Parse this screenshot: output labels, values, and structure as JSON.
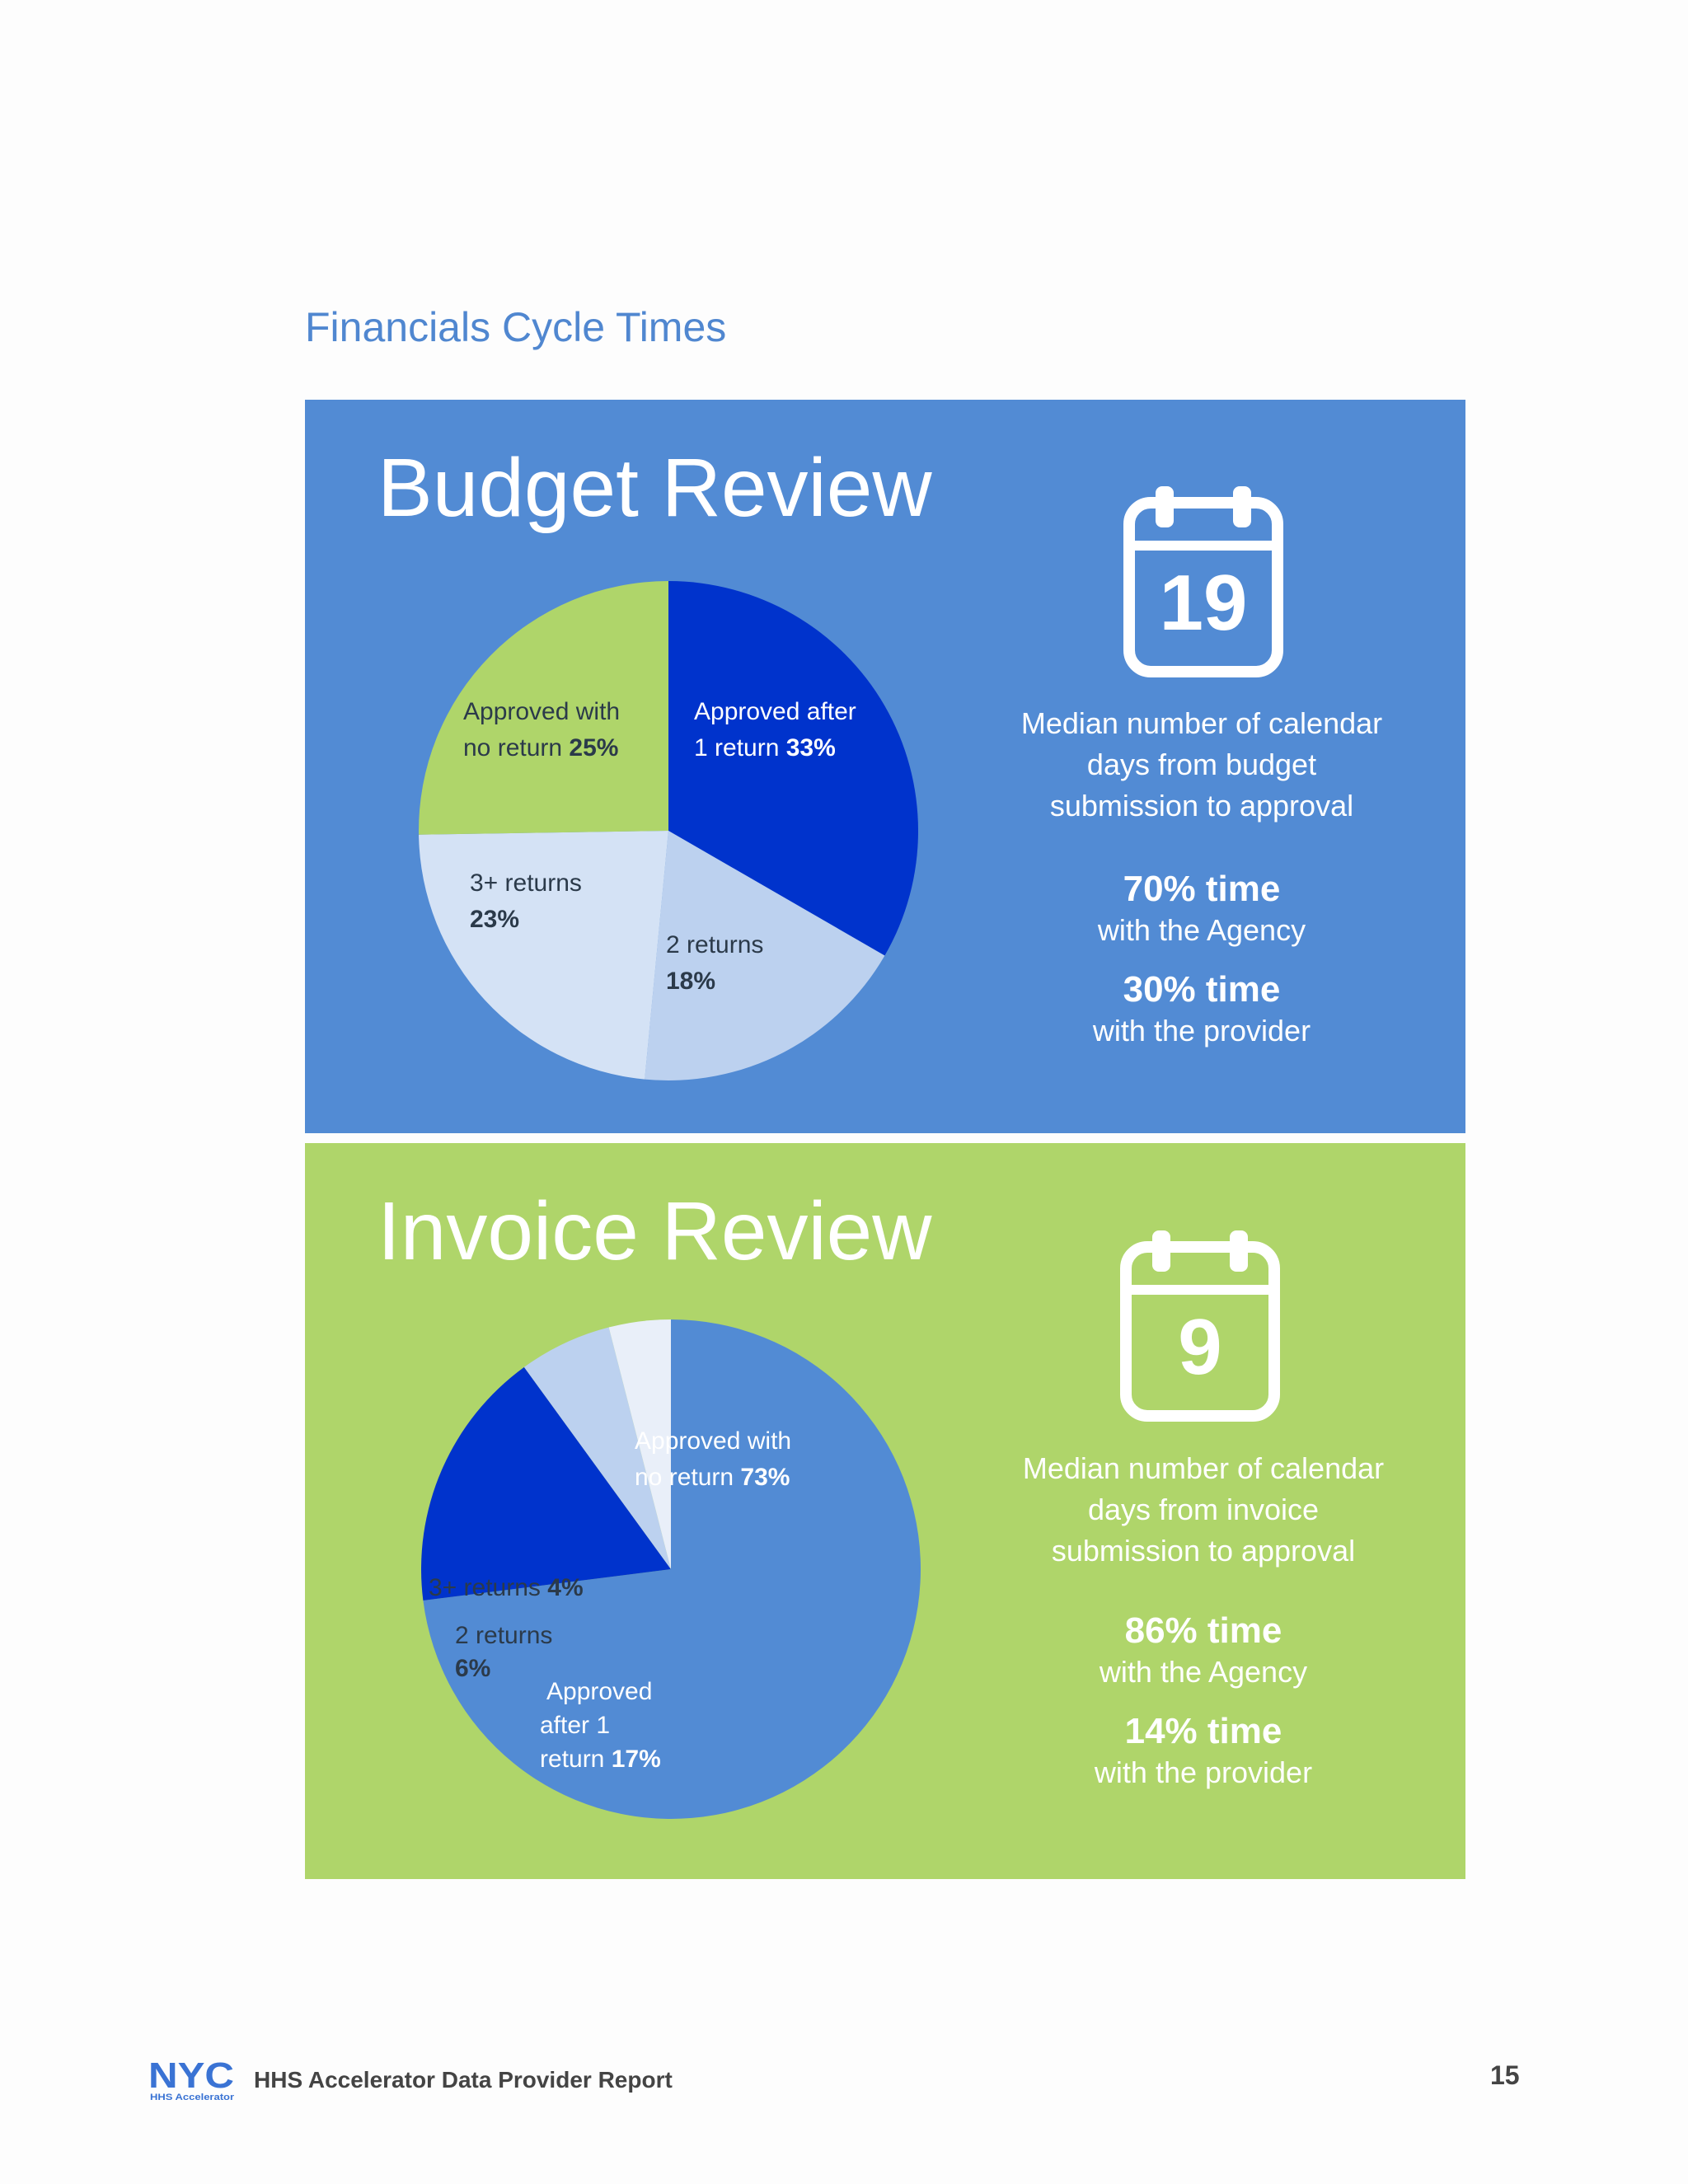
{
  "page_title": "Financials Cycle Times",
  "colors": {
    "blue_bg": "#528bd4",
    "green_bg": "#afd56a",
    "dark_blue": "#0033cc",
    "light_blue": "#bcd1ef",
    "pale_blue": "#d4e2f5",
    "paler_blue": "#e9eff9"
  },
  "budget": {
    "title": "Budget Review",
    "calendar_icon": "calendar-icon",
    "days": "19",
    "median_text": [
      "Median number of calendar",
      "days from budget",
      "submission to approval"
    ],
    "agency_pct": "70% time",
    "agency_label": "with the Agency",
    "provider_pct": "30% time",
    "provider_label": "with the provider"
  },
  "invoice": {
    "title": "Invoice Review",
    "calendar_icon": "calendar-icon",
    "days": "9",
    "median_text": [
      "Median number of calendar",
      "days from invoice",
      "submission to approval"
    ],
    "agency_pct": "86% time",
    "agency_label": "with the Agency",
    "provider_pct": "14% time",
    "provider_label": "with the provider"
  },
  "chart_data": [
    {
      "type": "pie",
      "slices": [
        {
          "category": "Approved after 1 return",
          "value": 33,
          "value_label": "33%",
          "color": "#0033cc",
          "label_lines": [
            "Approved after",
            "1 return"
          ]
        },
        {
          "category": "2 returns",
          "value": 18,
          "value_label": "18%",
          "color": "#bcd1ef",
          "label_lines": [
            "2 returns"
          ]
        },
        {
          "category": "3+ returns",
          "value": 23,
          "value_label": "23%",
          "color": "#d4e2f5",
          "label_lines": [
            "3+ returns"
          ]
        },
        {
          "category": "Approved with no return",
          "value": 25,
          "value_label": "25%",
          "color": "#afd56a",
          "label_lines": [
            "Approved with",
            "no return"
          ]
        }
      ]
    },
    {
      "type": "pie",
      "slices": [
        {
          "category": "Approved with no return",
          "value": 73,
          "value_label": "73%",
          "color": "#528bd4",
          "label_lines": [
            "Approved with",
            "no return"
          ]
        },
        {
          "category": "Approved after 1 return",
          "value": 17,
          "value_label": "17%",
          "color": "#0033cc",
          "label_lines": [
            "Approved",
            "after 1",
            "return"
          ]
        },
        {
          "category": "2 returns",
          "value": 6,
          "value_label": "6%",
          "color": "#bcd1ef",
          "label_lines": [
            "2 returns"
          ]
        },
        {
          "category": "3+ returns",
          "value": 4,
          "value_label": "4%",
          "color": "#e9eff9",
          "label_lines": [
            "3+ returns"
          ]
        }
      ]
    }
  ],
  "footer": {
    "logo_text": "NYC",
    "logo_subtext": "HHS Accelerator",
    "report_name": "HHS Accelerator Data Provider Report",
    "page_number": "15"
  }
}
